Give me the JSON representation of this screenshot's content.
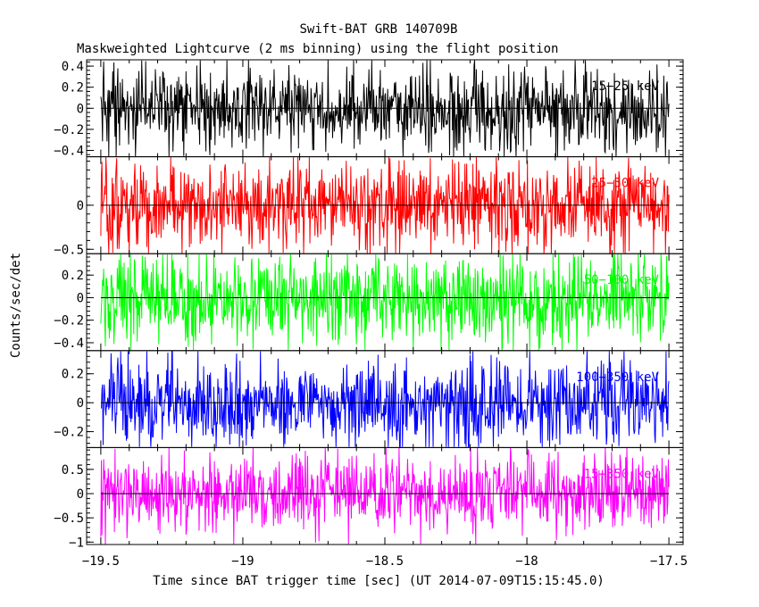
{
  "chart_data": {
    "type": "line",
    "title": "Swift-BAT GRB 140709B",
    "subtitle": "Maskweighted Lightcurve (2 ms binning) using the flight position",
    "xlabel": "Time since BAT trigger time [sec] (UT 2014-07-09T15:15:45.0)",
    "ylabel": "Counts/sec/det",
    "xlim": [
      -19.55,
      -17.45
    ],
    "x_range_data": [
      -19.5,
      -17.5
    ],
    "bin_width_sec": 0.002,
    "xticks": [
      {
        "v": -19.5,
        "label": "−19.5"
      },
      {
        "v": -19,
        "label": "−19"
      },
      {
        "v": -18.5,
        "label": "−18.5"
      },
      {
        "v": -18,
        "label": "−18"
      },
      {
        "v": -17.5,
        "label": "−17.5"
      }
    ],
    "grid": false,
    "panels": [
      {
        "band": "15−25 keV",
        "color": "#000000",
        "ylim": [
          -0.46,
          0.46
        ],
        "amplitude": 0.2,
        "yticks": [
          {
            "v": 0.4,
            "label": "0.4"
          },
          {
            "v": 0.2,
            "label": "0.2"
          },
          {
            "v": 0,
            "label": "0"
          },
          {
            "v": -0.2,
            "label": "−0.2"
          },
          {
            "v": -0.4,
            "label": "−0.4"
          }
        ]
      },
      {
        "band": "25−50 keV",
        "color": "#ff0000",
        "ylim": [
          -0.55,
          0.55
        ],
        "amplitude": 0.26,
        "yticks": [
          {
            "v": 0,
            "label": "0"
          },
          {
            "v": -0.5,
            "label": "−0.5"
          }
        ]
      },
      {
        "band": "50−100 keV",
        "color": "#00ff00",
        "ylim": [
          -0.47,
          0.39
        ],
        "amplitude": 0.2,
        "yticks": [
          {
            "v": 0.2,
            "label": "0.2"
          },
          {
            "v": 0,
            "label": "0"
          },
          {
            "v": -0.2,
            "label": "−0.2"
          },
          {
            "v": -0.4,
            "label": "−0.4"
          }
        ]
      },
      {
        "band": "100−350 keV",
        "color": "#0000ff",
        "ylim": [
          -0.31,
          0.36
        ],
        "amplitude": 0.15,
        "yticks": [
          {
            "v": 0.2,
            "label": "0.2"
          },
          {
            "v": 0,
            "label": "0"
          },
          {
            "v": -0.2,
            "label": "−0.2"
          }
        ]
      },
      {
        "band": "15−350 keV",
        "color": "#ff00ff",
        "ylim": [
          -1.05,
          0.95
        ],
        "amplitude": 0.4,
        "yticks": [
          {
            "v": 0.5,
            "label": "0.5"
          },
          {
            "v": 0,
            "label": "0"
          },
          {
            "v": -0.5,
            "label": "−0.5"
          },
          {
            "v": -1,
            "label": "−1"
          }
        ]
      }
    ]
  }
}
